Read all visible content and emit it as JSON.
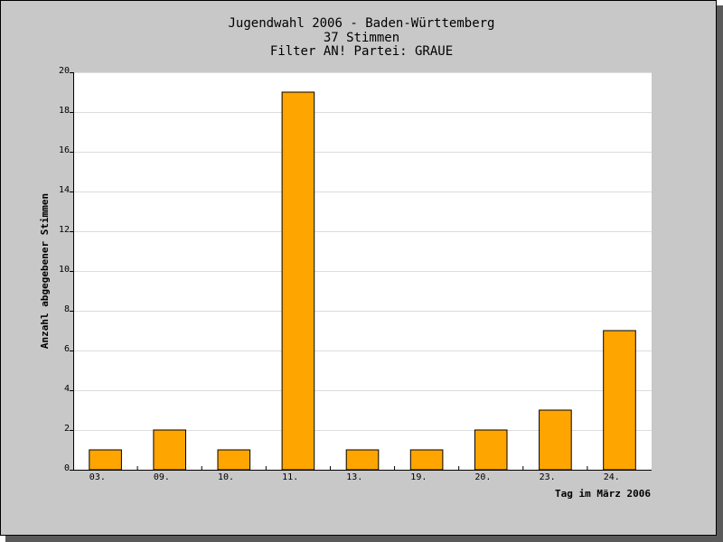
{
  "chart_data": {
    "type": "bar",
    "title": "Jugendwahl 2006 - Baden-Württemberg",
    "subtitle_lines": [
      "37 Stimmen",
      "Filter AN! Partei: GRAUE"
    ],
    "xlabel": "Tag im März 2006",
    "ylabel": "Anzahl abgegebener Stimmen",
    "categories": [
      "03.",
      "09.",
      "10.",
      "11.",
      "13.",
      "19.",
      "20.",
      "23.",
      "24."
    ],
    "values": [
      1,
      2,
      1,
      19,
      1,
      1,
      2,
      3,
      7
    ],
    "ylim": [
      0,
      20
    ],
    "yticks": [
      0,
      2,
      4,
      6,
      8,
      10,
      12,
      14,
      16,
      18,
      20
    ],
    "grid": true,
    "legend": "none",
    "bar_color": "#ffa500",
    "bar_edge_color": "#000000",
    "plot_background": "#ffffff",
    "frame_background": "#c8c8c8",
    "grid_color": "#dcdcdc"
  }
}
